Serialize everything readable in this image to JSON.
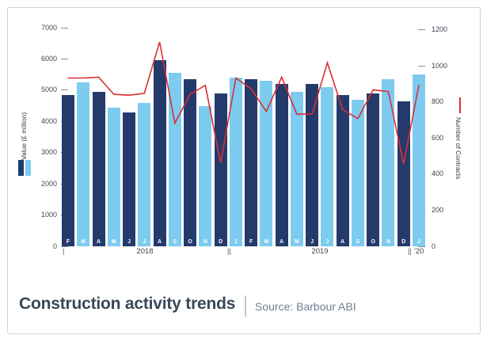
{
  "header": {
    "title": "Construction activity trends",
    "source": "Source: Barbour ABI"
  },
  "chart_data": {
    "type": "combo_bar_line",
    "months": [
      "F",
      "M",
      "A",
      "M",
      "J",
      "J",
      "A",
      "S",
      "O",
      "N",
      "D",
      "J",
      "F",
      "M",
      "A",
      "M",
      "J",
      "J",
      "A",
      "S",
      "O",
      "N",
      "D",
      "J"
    ],
    "bar_series": {
      "name": "Value (£ million)",
      "values": [
        4850,
        5250,
        4950,
        4450,
        4300,
        4600,
        5950,
        5550,
        5350,
        4500,
        4900,
        5400,
        5350,
        5300,
        5200,
        4950,
        5200,
        5100,
        4850,
        4700,
        4900,
        5350,
        4650,
        5500
      ]
    },
    "line_series": {
      "name": "Number of Contracts",
      "values": [
        930,
        930,
        935,
        840,
        835,
        845,
        1130,
        680,
        840,
        890,
        460,
        930,
        870,
        745,
        935,
        730,
        730,
        1015,
        755,
        705,
        865,
        855,
        455,
        890
      ]
    },
    "left_axis": {
      "title": "Value (£ million)",
      "max": 7000,
      "ticks": [
        7000,
        6000,
        5000,
        4000,
        3000,
        2000,
        1000,
        0
      ]
    },
    "right_axis": {
      "title": "Number of Contracts",
      "max": 1200,
      "ticks": [
        1200,
        1000,
        800,
        600,
        400,
        200,
        0
      ]
    },
    "timeline": {
      "start_mark": "|",
      "separator": "||",
      "year_labels": [
        "2018",
        "2019",
        "'20"
      ]
    },
    "legend": {
      "bar_colors": [
        "#243a6b",
        "#7ecbf0"
      ],
      "line_color": "#d92f34"
    },
    "layout": {
      "grid": "off",
      "legend_position": "beside axis titles",
      "x_axis": "months Feb 2018 - Jan 2020, bars alternate dark navy / light blue"
    }
  }
}
